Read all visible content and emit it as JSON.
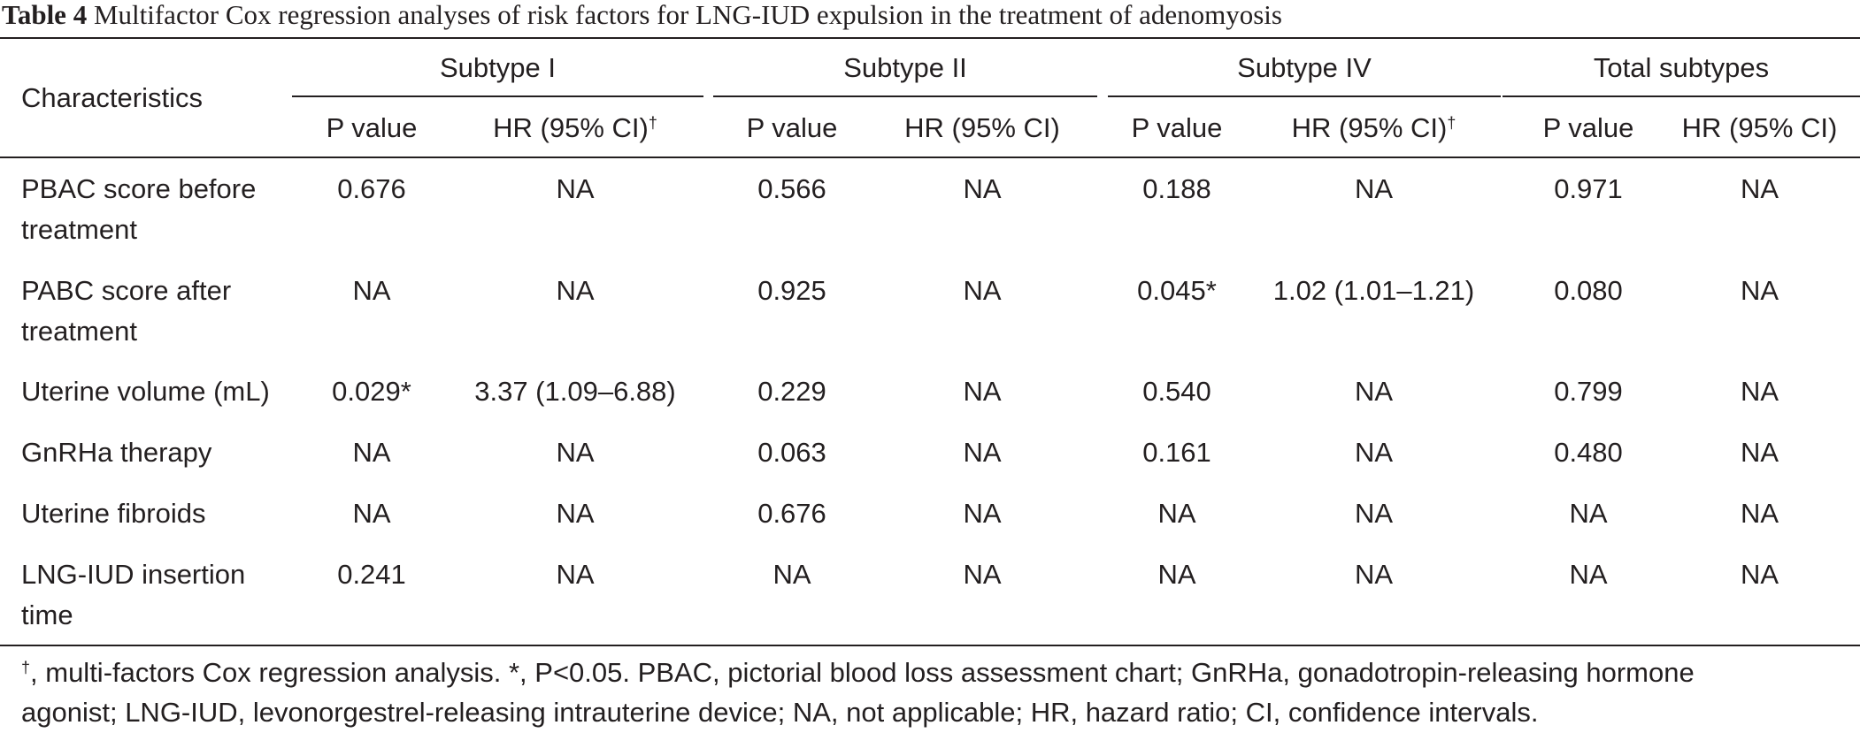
{
  "caption": {
    "label": "Table 4",
    "text": "Multifactor Cox regression analyses of risk factors for LNG-IUD expulsion in the treatment of adenomyosis"
  },
  "table": {
    "row_header": "Characteristics",
    "groups": [
      "Subtype I",
      "Subtype II",
      "Subtype IV",
      "Total subtypes"
    ],
    "subheaders": [
      {
        "text": "P value",
        "sup": ""
      },
      {
        "text": "HR (95% CI)",
        "sup": "†"
      },
      {
        "text": "P value",
        "sup": ""
      },
      {
        "text": "HR (95% CI)",
        "sup": ""
      },
      {
        "text": "P value",
        "sup": ""
      },
      {
        "text": "HR (95% CI)",
        "sup": "†"
      },
      {
        "text": "P value",
        "sup": ""
      },
      {
        "text": "HR (95% CI)",
        "sup": ""
      }
    ],
    "rows": [
      {
        "label": [
          "PBAC score before",
          "treatment"
        ],
        "values": [
          "0.676",
          "NA",
          "0.566",
          "NA",
          "0.188",
          "NA",
          "0.971",
          "NA"
        ]
      },
      {
        "label": [
          "PABC score after",
          "treatment"
        ],
        "values": [
          "NA",
          "NA",
          "0.925",
          "NA",
          "0.045*",
          "1.02 (1.01–1.21)",
          "0.080",
          "NA"
        ]
      },
      {
        "label": [
          "Uterine volume (mL)"
        ],
        "values": [
          "0.029*",
          "3.37 (1.09–6.88)",
          "0.229",
          "NA",
          "0.540",
          "NA",
          "0.799",
          "NA"
        ]
      },
      {
        "label": [
          "GnRHa therapy"
        ],
        "values": [
          "NA",
          "NA",
          "0.063",
          "NA",
          "0.161",
          "NA",
          "0.480",
          "NA"
        ]
      },
      {
        "label": [
          "Uterine fibroids"
        ],
        "values": [
          "NA",
          "NA",
          "0.676",
          "NA",
          "NA",
          "NA",
          "NA",
          "NA"
        ]
      },
      {
        "label": [
          "LNG-IUD insertion",
          "time"
        ],
        "values": [
          "0.241",
          "NA",
          "NA",
          "NA",
          "NA",
          "NA",
          "NA",
          "NA"
        ]
      }
    ]
  },
  "footnote": {
    "dagger": "†",
    "line1": ", multi-factors Cox regression analysis. *, P<0.05. PBAC, pictorial blood loss assessment chart; GnRHa, gonadotropin-releasing hormone",
    "line2": "agonist; LNG-IUD, levonorgestrel-releasing intrauterine device; NA, not applicable; HR, hazard ratio; CI, confidence intervals."
  }
}
